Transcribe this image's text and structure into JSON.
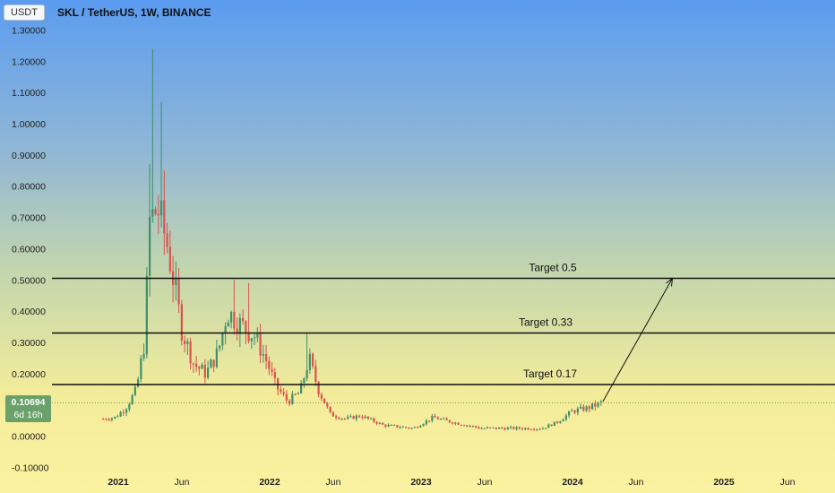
{
  "header": {
    "currency": "USDT",
    "title": "SKL / TetherUS, 1W, BINANCE"
  },
  "price_tag": {
    "price": "0.10694",
    "countdown": "6d 16h"
  },
  "chart_data": {
    "type": "candlestick",
    "yticks": [
      "1.30000",
      "1.20000",
      "1.10000",
      "1.00000",
      "0.90000",
      "0.80000",
      "0.70000",
      "0.60000",
      "0.50000",
      "0.40000",
      "0.30000",
      "0.20000",
      "0.10000",
      "0.00000",
      "-0.10000"
    ],
    "ylim": [
      -0.1,
      1.3
    ],
    "xticks": [
      {
        "label": "2021",
        "major": true,
        "t": 2021.0
      },
      {
        "label": "Jun",
        "major": false,
        "t": 2021.42
      },
      {
        "label": "2022",
        "major": true,
        "t": 2022.0
      },
      {
        "label": "Jun",
        "major": false,
        "t": 2022.42
      },
      {
        "label": "2023",
        "major": true,
        "t": 2023.0
      },
      {
        "label": "Jun",
        "major": false,
        "t": 2023.42
      },
      {
        "label": "2024",
        "major": true,
        "t": 2024.0
      },
      {
        "label": "Jun",
        "major": false,
        "t": 2024.42
      },
      {
        "label": "2025",
        "major": true,
        "t": 2025.0
      },
      {
        "label": "Jun",
        "major": false,
        "t": 2025.42
      }
    ],
    "target_lines": [
      {
        "label": "Target 0.5",
        "value": 0.505
      },
      {
        "label": "Target 0.33",
        "value": 0.33
      },
      {
        "label": "Target  0.17",
        "value": 0.165
      }
    ],
    "last_price": 0.10694,
    "projection": {
      "from": [
        2024.2,
        0.11
      ],
      "to": [
        2024.66,
        0.505
      ]
    },
    "up_color": "#3f8f6a",
    "down_color": "#d9534f",
    "anchors": [
      [
        2020.9,
        0.055
      ],
      [
        2020.98,
        0.06
      ],
      [
        2021.05,
        0.09
      ],
      [
        2021.12,
        0.15
      ],
      [
        2021.18,
        0.32
      ],
      [
        2021.2,
        0.68
      ],
      [
        2021.26,
        0.73
      ],
      [
        2021.32,
        0.62
      ],
      [
        2021.38,
        0.46
      ],
      [
        2021.42,
        0.34
      ],
      [
        2021.5,
        0.23
      ],
      [
        2021.58,
        0.2
      ],
      [
        2021.66,
        0.27
      ],
      [
        2021.72,
        0.4
      ],
      [
        2021.8,
        0.36
      ],
      [
        2021.9,
        0.32
      ],
      [
        2021.98,
        0.24
      ],
      [
        2022.04,
        0.16
      ],
      [
        2022.12,
        0.11
      ],
      [
        2022.2,
        0.14
      ],
      [
        2022.26,
        0.25
      ],
      [
        2022.32,
        0.15
      ],
      [
        2022.4,
        0.07
      ],
      [
        2022.5,
        0.055
      ],
      [
        2022.6,
        0.065
      ],
      [
        2022.75,
        0.035
      ],
      [
        2022.95,
        0.025
      ],
      [
        2023.08,
        0.06
      ],
      [
        2023.2,
        0.045
      ],
      [
        2023.4,
        0.025
      ],
      [
        2023.6,
        0.025
      ],
      [
        2023.8,
        0.025
      ],
      [
        2023.9,
        0.045
      ],
      [
        2024.0,
        0.08
      ],
      [
        2024.1,
        0.09
      ],
      [
        2024.2,
        0.107
      ]
    ]
  }
}
